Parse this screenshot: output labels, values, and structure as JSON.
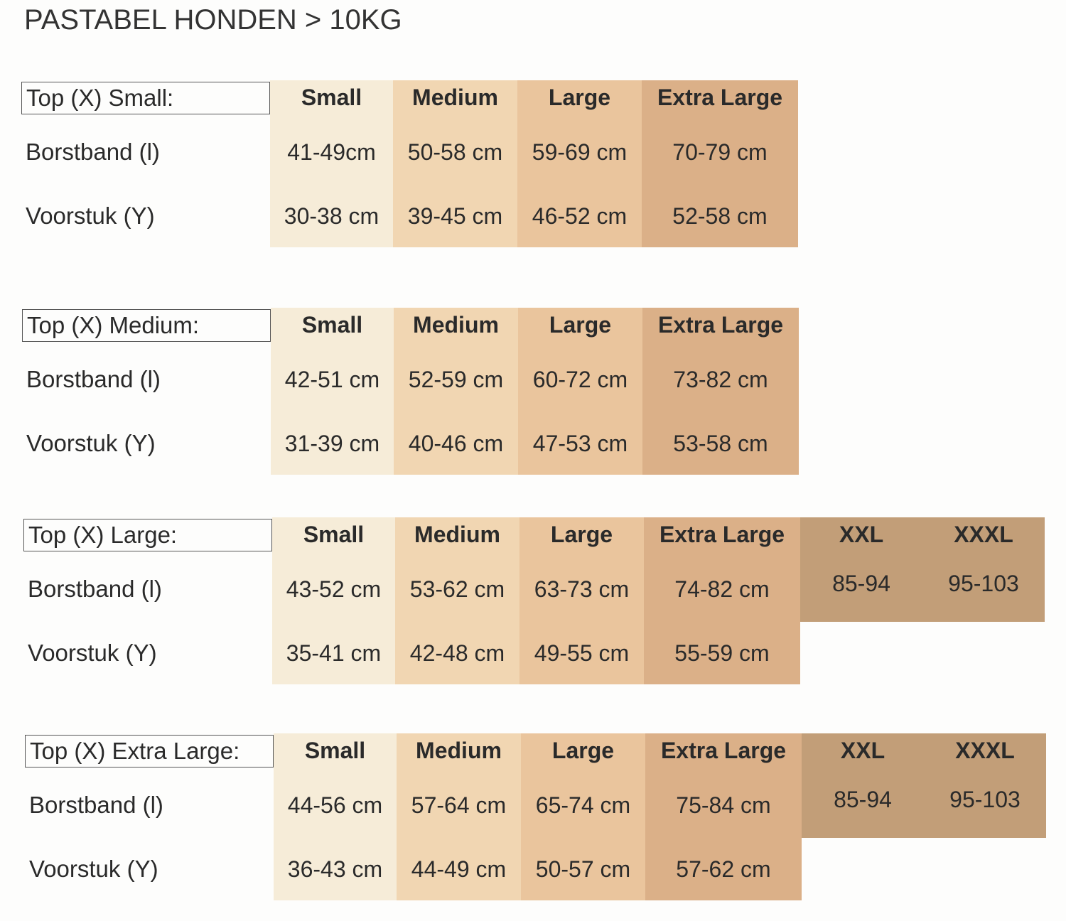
{
  "title": "PASTABEL HONDEN > 10KG",
  "row_labels": {
    "borst": "Borstband (l)",
    "voor": "Voorstuk (Y)"
  },
  "colors": {
    "small": "#f6ecd8",
    "medium": "#f1d6b2",
    "large": "#eac59d",
    "extra_large": "#dbb088",
    "xxl": "#c29e78"
  },
  "tables": [
    {
      "label": "Top (X) Small:",
      "headers": [
        "Small",
        "Medium",
        "Large",
        "Extra Large"
      ],
      "borstband": [
        "41-49cm",
        "50-58 cm",
        "59-69 cm",
        "70-79 cm"
      ],
      "voorstuk": [
        "30-38 cm",
        "39-45 cm",
        "46-52 cm",
        "52-58 cm"
      ]
    },
    {
      "label": "Top (X) Medium:",
      "headers": [
        "Small",
        "Medium",
        "Large",
        "Extra Large"
      ],
      "borstband": [
        "42-51 cm",
        "52-59 cm",
        "60-72 cm",
        "73-82 cm"
      ],
      "voorstuk": [
        "31-39 cm",
        "40-46 cm",
        "47-53 cm",
        "53-58 cm"
      ]
    },
    {
      "label": "Top (X) Large:",
      "headers": [
        "Small",
        "Medium",
        "Large",
        "Extra Large",
        "XXL",
        "XXXL"
      ],
      "borstband": [
        "43-52 cm",
        "53-62 cm",
        "63-73 cm",
        "74-82 cm",
        "85-94",
        "95-103"
      ],
      "voorstuk": [
        "35-41 cm",
        "42-48 cm",
        "49-55 cm",
        "55-59 cm"
      ]
    },
    {
      "label": "Top (X) Extra Large:",
      "headers": [
        "Small",
        "Medium",
        "Large",
        "Extra Large",
        "XXL",
        "XXXL"
      ],
      "borstband": [
        "44-56 cm",
        "57-64 cm",
        "65-74 cm",
        "75-84 cm",
        "85-94",
        "95-103"
      ],
      "voorstuk": [
        "36-43 cm",
        "44-49 cm",
        "50-57 cm",
        "57-62 cm"
      ]
    }
  ]
}
